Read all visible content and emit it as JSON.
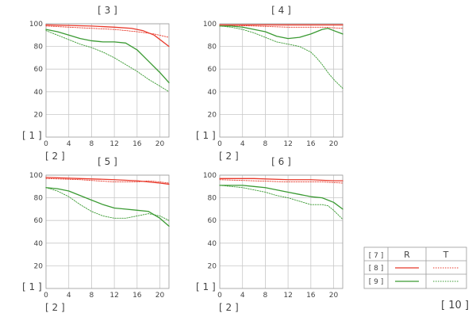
{
  "colors": {
    "red": "#e8392b",
    "green": "#3a9a32"
  },
  "legend": {
    "corner_label": "[ 7 ]",
    "col_r": "R",
    "col_t": "T",
    "row_red_label": "[ 8 ]",
    "row_green_label": "[ 9 ]"
  },
  "footnote": "[ 10 ]",
  "chart_data": [
    {
      "type": "line",
      "title": "[ 3 ]",
      "ylabel": "[ 1 ]",
      "xlabel": "[ 2 ]",
      "xlim": [
        0,
        21.6
      ],
      "ylim": [
        0,
        100
      ],
      "xticks": [
        0,
        4,
        8,
        12,
        16,
        20
      ],
      "yticks": [
        20,
        40,
        60,
        80,
        100
      ],
      "grid": true,
      "series": [
        {
          "color": "red",
          "dash": false,
          "x": [
            0,
            4,
            8,
            12,
            15,
            17,
            19,
            21.6
          ],
          "y": [
            99,
            98.5,
            98,
            97,
            96,
            94,
            90,
            80
          ]
        },
        {
          "color": "red",
          "dash": true,
          "x": [
            0,
            4,
            8,
            12,
            16,
            19,
            21.6
          ],
          "y": [
            98,
            97,
            96,
            95,
            93,
            91,
            88
          ]
        },
        {
          "color": "green",
          "dash": false,
          "x": [
            0,
            2,
            4,
            6,
            8,
            10,
            12,
            14,
            16,
            18,
            20,
            21.6
          ],
          "y": [
            95,
            93,
            90,
            87,
            85,
            84,
            84,
            83,
            77,
            67,
            57,
            48
          ]
        },
        {
          "color": "green",
          "dash": true,
          "x": [
            0,
            2,
            4,
            6,
            8,
            10,
            12,
            14,
            16,
            18,
            20,
            21.6
          ],
          "y": [
            94,
            90,
            86,
            82,
            79,
            75,
            70,
            64,
            58,
            51,
            45,
            40
          ]
        }
      ]
    },
    {
      "type": "line",
      "title": "[ 4 ]",
      "ylabel": "[ 1 ]",
      "xlabel": "[ 2 ]",
      "xlim": [
        0,
        21.6
      ],
      "ylim": [
        0,
        100
      ],
      "xticks": [
        0,
        4,
        8,
        12,
        16,
        20
      ],
      "yticks": [
        20,
        40,
        60,
        80,
        100
      ],
      "grid": true,
      "series": [
        {
          "color": "red",
          "dash": false,
          "x": [
            0,
            6,
            12,
            18,
            21.6
          ],
          "y": [
            99,
            99,
            99,
            99,
            99
          ]
        },
        {
          "color": "red",
          "dash": true,
          "x": [
            0,
            6,
            12,
            18,
            21.6
          ],
          "y": [
            99,
            98,
            97,
            97,
            96
          ]
        },
        {
          "color": "green",
          "dash": false,
          "x": [
            0,
            2,
            4,
            6,
            8,
            10,
            12,
            14,
            16,
            18,
            19,
            20,
            21.6
          ],
          "y": [
            98,
            98,
            97,
            95,
            93,
            89,
            87,
            88,
            91,
            95,
            96,
            94,
            91
          ]
        },
        {
          "color": "green",
          "dash": true,
          "x": [
            0,
            2,
            4,
            6,
            8,
            10,
            12,
            14,
            16,
            17,
            18,
            19,
            20,
            21.6
          ],
          "y": [
            98,
            97,
            95,
            92,
            88,
            84,
            82,
            80,
            75,
            70,
            64,
            57,
            51,
            43
          ]
        }
      ]
    },
    {
      "type": "line",
      "title": "[ 5 ]",
      "ylabel": "[ 1 ]",
      "xlabel": "[ 2 ]",
      "xlim": [
        0,
        21.6
      ],
      "ylim": [
        0,
        100
      ],
      "xticks": [
        0,
        4,
        8,
        12,
        16,
        20
      ],
      "yticks": [
        20,
        40,
        60,
        80,
        100
      ],
      "grid": true,
      "series": [
        {
          "color": "red",
          "dash": false,
          "x": [
            0,
            6,
            12,
            16,
            20,
            21.6
          ],
          "y": [
            98,
            97,
            96,
            95,
            93,
            92
          ]
        },
        {
          "color": "red",
          "dash": true,
          "x": [
            0,
            6,
            12,
            16,
            18,
            20,
            21.6
          ],
          "y": [
            97,
            96,
            94,
            94,
            95,
            94,
            93
          ]
        },
        {
          "color": "green",
          "dash": false,
          "x": [
            0,
            2,
            4,
            6,
            8,
            10,
            12,
            14,
            16,
            18,
            20,
            21.6
          ],
          "y": [
            89,
            88,
            86,
            82,
            78,
            74,
            71,
            70,
            69,
            68,
            62,
            55
          ]
        },
        {
          "color": "green",
          "dash": true,
          "x": [
            0,
            2,
            4,
            6,
            8,
            10,
            12,
            14,
            16,
            18,
            20,
            21.6
          ],
          "y": [
            89,
            86,
            81,
            74,
            68,
            64,
            62,
            62,
            64,
            66,
            64,
            60
          ]
        }
      ]
    },
    {
      "type": "line",
      "title": "[ 6 ]",
      "ylabel": "[ 1 ]",
      "xlabel": "[ 2 ]",
      "xlim": [
        0,
        21.6
      ],
      "ylim": [
        0,
        100
      ],
      "xticks": [
        0,
        4,
        8,
        12,
        16,
        20
      ],
      "yticks": [
        20,
        40,
        60,
        80,
        100
      ],
      "grid": true,
      "series": [
        {
          "color": "red",
          "dash": false,
          "x": [
            0,
            6,
            12,
            16,
            20,
            21.6
          ],
          "y": [
            97,
            97,
            96,
            96,
            95,
            95
          ]
        },
        {
          "color": "red",
          "dash": true,
          "x": [
            0,
            6,
            12,
            18,
            21.6
          ],
          "y": [
            96,
            95,
            94,
            94,
            93
          ]
        },
        {
          "color": "green",
          "dash": false,
          "x": [
            0,
            2,
            4,
            6,
            8,
            10,
            12,
            14,
            16,
            18,
            20,
            21.6
          ],
          "y": [
            91,
            91,
            91,
            90,
            89,
            87,
            85,
            83,
            81,
            80,
            76,
            70
          ]
        },
        {
          "color": "green",
          "dash": true,
          "x": [
            0,
            2,
            4,
            6,
            8,
            10,
            12,
            14,
            16,
            18,
            19,
            20,
            21.6
          ],
          "y": [
            91,
            90,
            89,
            87,
            85,
            82,
            80,
            77,
            74,
            74,
            73,
            69,
            61
          ]
        }
      ]
    }
  ]
}
